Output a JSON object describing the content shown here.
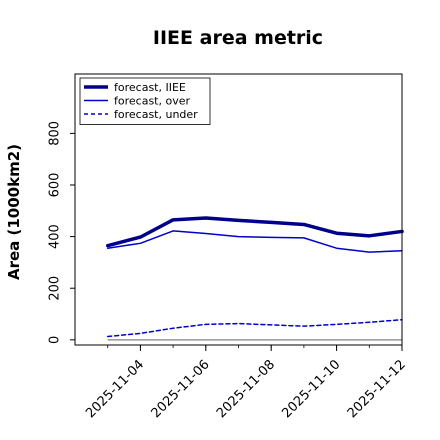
{
  "chart_data": {
    "type": "line",
    "title": "IIEE area metric",
    "xlabel": "",
    "ylabel": "Area (1000km2)",
    "x": [
      "2025-11-03",
      "2025-11-04",
      "2025-11-05",
      "2025-11-06",
      "2025-11-07",
      "2025-11-08",
      "2025-11-09",
      "2025-11-10",
      "2025-11-11",
      "2025-11-12"
    ],
    "xticks": [
      "2025-11-04",
      "2025-11-06",
      "2025-11-08",
      "2025-11-10",
      "2025-11-12"
    ],
    "highlight_tick": "2025-11-04",
    "xlim": [
      "2025-11-02",
      "2025-11-12"
    ],
    "ylim": [
      -20,
      1030
    ],
    "yticks": [
      0,
      200,
      400,
      600,
      800
    ],
    "grid": false,
    "legend_position": "top-left",
    "baseline": 0,
    "series": [
      {
        "name": "forecast, IIEE",
        "style": "thick",
        "color": "#00008b",
        "values": [
          365,
          398,
          465,
          472,
          463,
          455,
          447,
          413,
          403,
          420
        ]
      },
      {
        "name": "forecast, over",
        "style": "solid",
        "color": "#0000cd",
        "values": [
          355,
          374,
          422,
          412,
          400,
          397,
          395,
          355,
          340,
          345
        ]
      },
      {
        "name": "forecast, under",
        "style": "dashed",
        "color": "#0000cd",
        "values": [
          13,
          25,
          45,
          60,
          63,
          58,
          53,
          60,
          68,
          78
        ]
      }
    ],
    "colors": {
      "baseline": "#808080",
      "highlight_tick": "#228b22",
      "tick": "#000000"
    }
  }
}
